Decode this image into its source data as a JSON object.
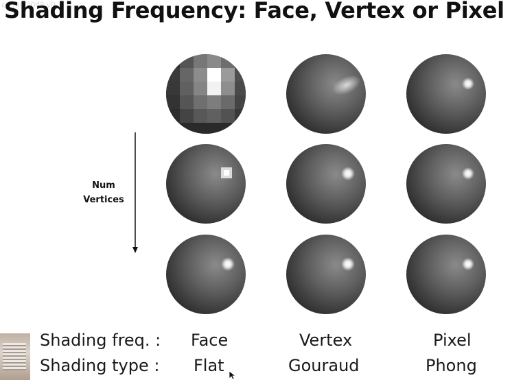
{
  "slide": {
    "title": "Shading Frequency: Face, Vertex or Pixel",
    "watermark": "en.ms.2048.v0",
    "arrow_label_line1": "Num",
    "arrow_label_line2": "Vertices",
    "rows": {
      "freq_title": "Shading freq. :",
      "type_title": "Shading type :"
    },
    "columns": [
      {
        "freq": "Face",
        "type": "Flat"
      },
      {
        "freq": "Vertex",
        "type": "Gouraud"
      },
      {
        "freq": "Pixel",
        "type": "Phong"
      }
    ]
  },
  "colors": {
    "sphere_dark": "#2a2a2a",
    "sphere_mid": "#5a5a5a",
    "highlight": "#ffffff"
  }
}
